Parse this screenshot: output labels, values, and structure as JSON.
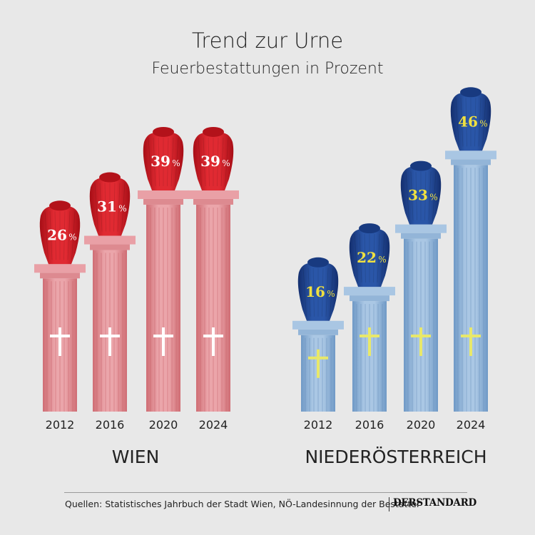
{
  "title": "Trend zur Urne",
  "subtitle": "Feuerbestattungen in Prozent",
  "chart_data": [
    {
      "type": "bar",
      "region": "WIEN",
      "categories": [
        "2012",
        "2016",
        "2020",
        "2024"
      ],
      "values": [
        26,
        31,
        39,
        39
      ],
      "unit": "%",
      "color": "#c8141e",
      "column_color": "#e0838a",
      "label_color": "#ffffff",
      "cross_color": "#ffffff",
      "ylim": [
        0,
        50
      ],
      "grid": false
    },
    {
      "type": "bar",
      "region": "NIEDERÖSTERREICH",
      "categories": [
        "2012",
        "2016",
        "2020",
        "2024"
      ],
      "values": [
        16,
        22,
        33,
        46
      ],
      "unit": "%",
      "color": "#1a3f8c",
      "column_color": "#8fb4d8",
      "label_color": "#f0e040",
      "cross_color": "#e8e86a",
      "ylim": [
        0,
        50
      ],
      "grid": false
    }
  ],
  "source": "Quellen: Statistisches Jahrbuch der Stadt Wien, NÖ-Landesinnung der Bestatter",
  "brand": "DERSTANDARD",
  "icons": [
    "urn-icon",
    "column-icon",
    "cross-icon"
  ]
}
